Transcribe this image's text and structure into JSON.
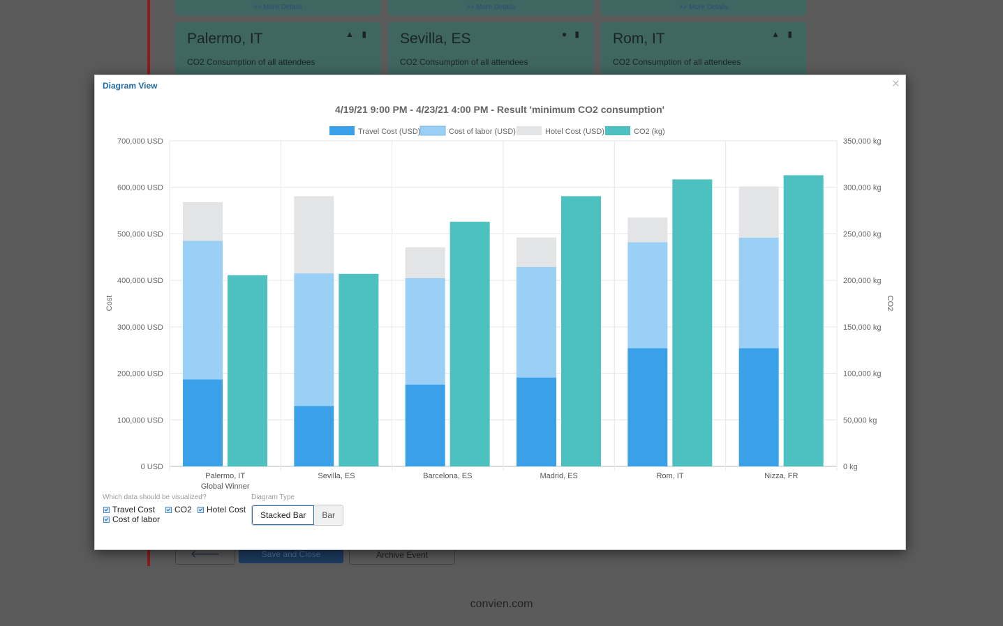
{
  "background": {
    "top_cards": [
      {
        "more": ">> More Details"
      },
      {
        "more": ">> More Details"
      },
      {
        "more": ">> More Details"
      }
    ],
    "city_cards": [
      {
        "name": "Palermo, IT",
        "subtitle": "CO2 Consumption of all attendees",
        "icons": "▲ ▮"
      },
      {
        "name": "Sevilla, ES",
        "subtitle": "CO2 Consumption of all attendees",
        "icons": "● ▮"
      },
      {
        "name": "Rom, IT",
        "subtitle": "CO2 Consumption of all attendees",
        "icons": "▲ ▮"
      }
    ],
    "back_button": "🡐",
    "save_button": "Save and Close",
    "archive_button": "Archive Event",
    "footer": "convien.com"
  },
  "modal": {
    "title": "Diagram View",
    "close": "×",
    "controls": {
      "question": "Which data should be visualized?",
      "checkboxes": [
        "Travel Cost",
        "CO2",
        "Hotel Cost",
        "Cost of labor"
      ],
      "diagram_type_label": "Diagram Type",
      "types": [
        "Stacked Bar",
        "Bar"
      ],
      "selected_type": "Stacked Bar"
    }
  },
  "chart_data": {
    "type": "bar",
    "title": "4/19/21 9:00 PM - 4/23/21 4:00 PM - Result 'minimum CO2 consumption'",
    "categories": [
      "Palermo, IT",
      "Sevilla, ES",
      "Barcelona, ES",
      "Madrid, ES",
      "Rom, IT",
      "Nizza, FR"
    ],
    "category_sublabels": [
      "Global Winner",
      "",
      "",
      "",
      "",
      ""
    ],
    "ylabel": "Cost",
    "y2label": "CO2",
    "ylim": [
      0,
      700000
    ],
    "y2lim": [
      0,
      350000
    ],
    "y_ticks": [
      "0 USD",
      "100,000 USD",
      "200,000 USD",
      "300,000 USD",
      "400,000 USD",
      "500,000 USD",
      "600,000 USD",
      "700,000 USD"
    ],
    "y2_ticks": [
      "0 kg",
      "50,000 kg",
      "100,000 kg",
      "150,000 kg",
      "200,000 kg",
      "250,000 kg",
      "300,000 kg",
      "350,000 kg"
    ],
    "grid": true,
    "legend_position": "top",
    "series": [
      {
        "name": "Travel Cost (USD)",
        "stack": "cost",
        "axis": "left",
        "color": "#3aa1e9",
        "values": [
          187000,
          130000,
          176000,
          191000,
          254000,
          254000
        ]
      },
      {
        "name": "Cost of labor (USD)",
        "stack": "cost",
        "axis": "left",
        "color": "#9bd0f6",
        "values": [
          298000,
          285000,
          229000,
          238000,
          228000,
          238000
        ]
      },
      {
        "name": "Hotel Cost (USD)",
        "stack": "cost",
        "axis": "left",
        "color": "#e3e4e5",
        "values": [
          83000,
          166000,
          66000,
          63000,
          53000,
          110000
        ]
      },
      {
        "name": "CO2 (kg)",
        "stack": "co2",
        "axis": "right",
        "color": "#4dc0c0",
        "values": [
          205500,
          207000,
          263000,
          290500,
          308500,
          313000
        ]
      }
    ]
  }
}
